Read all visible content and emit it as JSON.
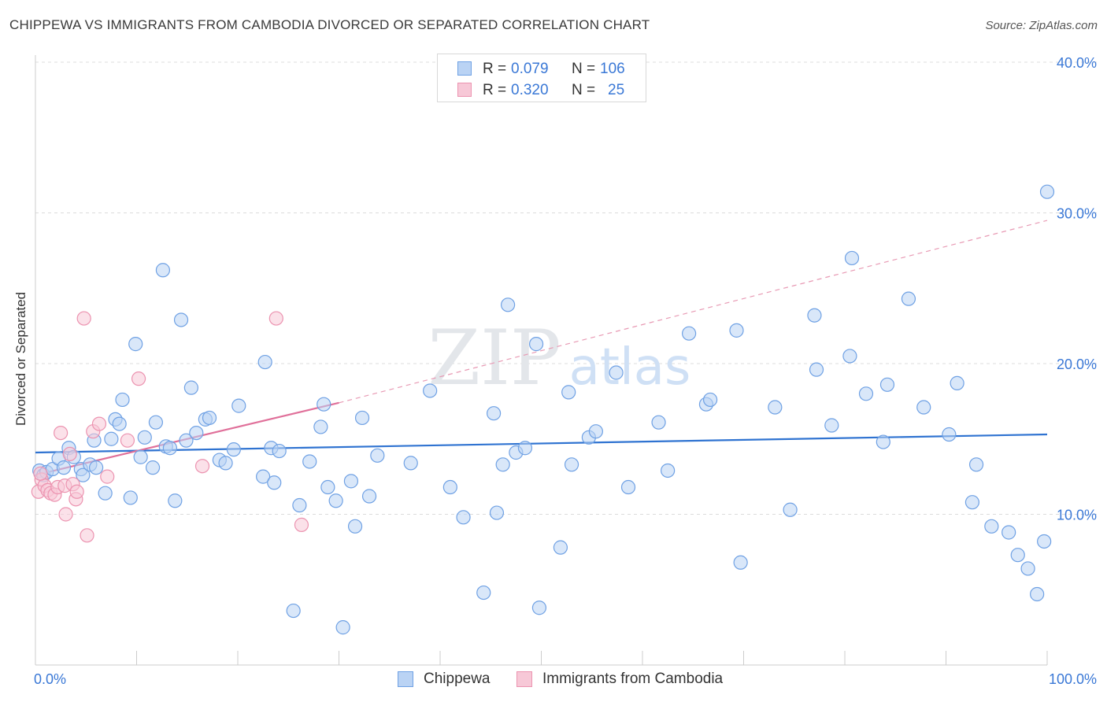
{
  "header": {
    "title": "CHIPPEWA VS IMMIGRANTS FROM CAMBODIA DIVORCED OR SEPARATED CORRELATION CHART",
    "source": "Source: ZipAtlas.com"
  },
  "watermark": {
    "text_left": "ZIP",
    "text_right": "atlas"
  },
  "stats": [
    {
      "series": "Chippewa",
      "r_label": "R =",
      "r_value": "0.079",
      "n_label": "N =",
      "n_value": "106"
    },
    {
      "series": "Immigrants from Cambodia",
      "r_label": "R =",
      "r_value": "0.320",
      "n_label": "N =",
      "n_value": "25"
    }
  ],
  "chart_data": {
    "type": "scatter",
    "title": "CHIPPEWA VS IMMIGRANTS FROM CAMBODIA DIVORCED OR SEPARATED CORRELATION CHART",
    "xlabel": "",
    "ylabel": "Divorced or Separated",
    "xlim": [
      0,
      100
    ],
    "ylim": [
      0,
      42
    ],
    "x_tick_labels": [
      {
        "value": 0,
        "label": "0.0%"
      },
      {
        "value": 100,
        "label": "100.0%"
      }
    ],
    "y_tick_labels": [
      {
        "value": 10,
        "label": "10.0%"
      },
      {
        "value": 20,
        "label": "20.0%"
      },
      {
        "value": 30,
        "label": "30.0%"
      },
      {
        "value": 40,
        "label": "40.0%"
      }
    ],
    "grid": true,
    "legend_position": "bottom-center",
    "series": [
      {
        "name": "Chippewa",
        "color": "#6fa1e4",
        "fill": "#bad3f4",
        "trendline": {
          "x": [
            0,
            100
          ],
          "y": [
            14.1,
            15.3
          ],
          "color": "#2f73d1",
          "style": "solid"
        },
        "points": [
          [
            0.4,
            12.9
          ],
          [
            0.8,
            12.6
          ],
          [
            1.1,
            12.8
          ],
          [
            1.7,
            13.0
          ],
          [
            2.3,
            13.7
          ],
          [
            2.8,
            13.1
          ],
          [
            3.3,
            14.4
          ],
          [
            3.8,
            13.8
          ],
          [
            4.5,
            13.0
          ],
          [
            4.7,
            12.6
          ],
          [
            5.4,
            13.3
          ],
          [
            5.8,
            14.9
          ],
          [
            6.0,
            13.1
          ],
          [
            6.9,
            11.4
          ],
          [
            7.5,
            15.0
          ],
          [
            7.9,
            16.3
          ],
          [
            8.3,
            16.0
          ],
          [
            8.6,
            17.6
          ],
          [
            9.4,
            11.1
          ],
          [
            9.9,
            21.3
          ],
          [
            10.4,
            13.8
          ],
          [
            10.8,
            15.1
          ],
          [
            11.6,
            13.1
          ],
          [
            11.9,
            16.1
          ],
          [
            12.6,
            26.2
          ],
          [
            12.9,
            14.5
          ],
          [
            13.3,
            14.4
          ],
          [
            13.8,
            10.9
          ],
          [
            14.4,
            22.9
          ],
          [
            14.9,
            14.9
          ],
          [
            15.4,
            18.4
          ],
          [
            15.9,
            15.4
          ],
          [
            16.8,
            16.3
          ],
          [
            17.2,
            16.4
          ],
          [
            18.2,
            13.6
          ],
          [
            18.8,
            13.4
          ],
          [
            19.6,
            14.3
          ],
          [
            20.1,
            17.2
          ],
          [
            22.5,
            12.5
          ],
          [
            22.7,
            20.1
          ],
          [
            23.3,
            14.4
          ],
          [
            23.6,
            12.1
          ],
          [
            24.1,
            14.2
          ],
          [
            25.5,
            3.6
          ],
          [
            26.1,
            10.6
          ],
          [
            27.1,
            13.5
          ],
          [
            28.2,
            15.8
          ],
          [
            28.5,
            17.3
          ],
          [
            28.9,
            11.8
          ],
          [
            29.7,
            10.9
          ],
          [
            30.4,
            2.5
          ],
          [
            31.2,
            12.2
          ],
          [
            31.6,
            9.2
          ],
          [
            32.3,
            16.4
          ],
          [
            33.0,
            11.2
          ],
          [
            33.8,
            13.9
          ],
          [
            37.1,
            13.4
          ],
          [
            39.0,
            18.2
          ],
          [
            41.0,
            11.8
          ],
          [
            42.3,
            9.8
          ],
          [
            44.3,
            4.8
          ],
          [
            45.3,
            16.7
          ],
          [
            45.6,
            10.1
          ],
          [
            46.2,
            13.3
          ],
          [
            46.7,
            23.9
          ],
          [
            47.5,
            14.1
          ],
          [
            48.4,
            14.4
          ],
          [
            49.5,
            21.3
          ],
          [
            49.8,
            3.8
          ],
          [
            51.9,
            7.8
          ],
          [
            52.7,
            18.1
          ],
          [
            53.0,
            13.3
          ],
          [
            54.7,
            15.1
          ],
          [
            55.4,
            15.5
          ],
          [
            57.4,
            19.4
          ],
          [
            58.6,
            11.8
          ],
          [
            61.6,
            16.1
          ],
          [
            62.5,
            12.9
          ],
          [
            64.6,
            22.0
          ],
          [
            66.3,
            17.3
          ],
          [
            66.7,
            17.6
          ],
          [
            69.3,
            22.2
          ],
          [
            69.7,
            6.8
          ],
          [
            73.1,
            17.1
          ],
          [
            74.6,
            10.3
          ],
          [
            77.0,
            23.2
          ],
          [
            77.2,
            19.6
          ],
          [
            78.7,
            15.9
          ],
          [
            80.7,
            27.0
          ],
          [
            80.5,
            20.5
          ],
          [
            82.1,
            18.0
          ],
          [
            83.8,
            14.8
          ],
          [
            84.2,
            18.6
          ],
          [
            86.3,
            24.3
          ],
          [
            87.8,
            17.1
          ],
          [
            90.3,
            15.3
          ],
          [
            91.1,
            18.7
          ],
          [
            92.6,
            10.8
          ],
          [
            93.0,
            13.3
          ],
          [
            94.5,
            9.2
          ],
          [
            96.2,
            8.8
          ],
          [
            97.1,
            7.3
          ],
          [
            98.1,
            6.4
          ],
          [
            99.0,
            4.7
          ],
          [
            99.7,
            8.2
          ],
          [
            100.0,
            31.4
          ]
        ]
      },
      {
        "name": "Immigrants from Cambodia",
        "color": "#ec93b0",
        "fill": "#f7c8d7",
        "trendline": {
          "x": [
            0,
            30
          ],
          "y": [
            12.6,
            17.4
          ],
          "color": "#e0709a",
          "style": "solid"
        },
        "trendline_extension": {
          "x": [
            30,
            100
          ],
          "y": [
            17.4,
            29.5
          ],
          "color": "#e89ab4",
          "style": "dashed"
        },
        "points": [
          [
            0.3,
            11.5
          ],
          [
            0.6,
            12.3
          ],
          [
            0.9,
            11.9
          ],
          [
            1.2,
            11.6
          ],
          [
            1.5,
            11.4
          ],
          [
            1.9,
            11.3
          ],
          [
            2.2,
            11.8
          ],
          [
            2.5,
            15.4
          ],
          [
            2.9,
            11.9
          ],
          [
            3.0,
            10.0
          ],
          [
            3.4,
            14.0
          ],
          [
            3.7,
            12.0
          ],
          [
            4.0,
            11.0
          ],
          [
            4.1,
            11.5
          ],
          [
            4.8,
            23.0
          ],
          [
            5.1,
            8.6
          ],
          [
            5.7,
            15.5
          ],
          [
            6.3,
            16.0
          ],
          [
            7.1,
            12.5
          ],
          [
            9.1,
            14.9
          ],
          [
            10.2,
            19.0
          ],
          [
            16.5,
            13.2
          ],
          [
            23.8,
            23.0
          ],
          [
            26.3,
            9.3
          ],
          [
            0.5,
            12.7
          ]
        ]
      }
    ]
  }
}
